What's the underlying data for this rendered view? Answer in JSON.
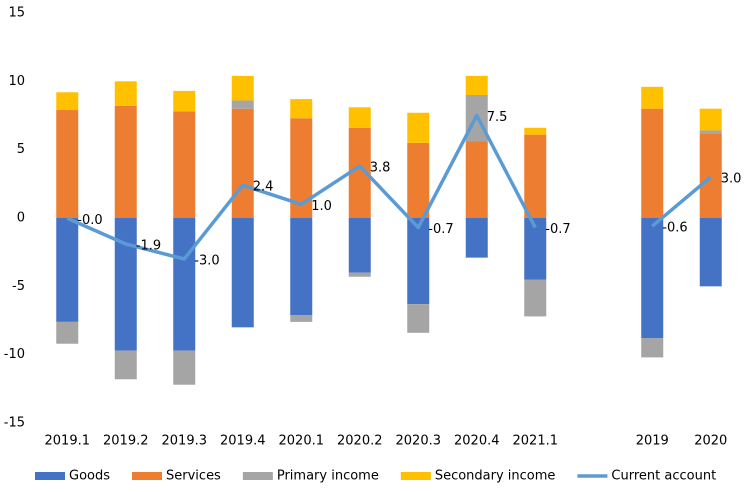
{
  "chart_data": {
    "type": "bar",
    "stacked": true,
    "categories": [
      "2019.1",
      "2019.2",
      "2019.3",
      "2019.4",
      "2020.1",
      "2020.2",
      "2020.3",
      "2020.4",
      "2021.1",
      null,
      "2019",
      "2020"
    ],
    "series": [
      {
        "name": "Goods",
        "color": "#4472c4",
        "values": [
          -7.6,
          -9.7,
          -9.7,
          -8.0,
          -7.1,
          -4.0,
          -6.3,
          -2.9,
          -4.5,
          null,
          -8.8,
          -5.0
        ]
      },
      {
        "name": "Services",
        "color": "#ed7d31",
        "values": [
          7.9,
          8.2,
          7.8,
          8.0,
          7.3,
          6.6,
          5.5,
          5.6,
          6.1,
          null,
          8.0,
          6.2
        ]
      },
      {
        "name": "Primary income",
        "color": "#a5a5a5",
        "values": [
          -1.6,
          -2.1,
          -2.5,
          0.6,
          -0.5,
          -0.3,
          -2.1,
          3.4,
          -2.7,
          null,
          -1.4,
          0.2
        ]
      },
      {
        "name": "Secondary income",
        "color": "#ffc000",
        "values": [
          1.3,
          1.8,
          1.5,
          1.8,
          1.4,
          1.5,
          2.2,
          1.4,
          0.5,
          null,
          1.6,
          1.6
        ]
      },
      {
        "name": "Current account",
        "color": "#5b9bd5",
        "type": "line",
        "values": [
          -0.02,
          -1.9,
          -3.0,
          2.4,
          1.0,
          3.8,
          -0.7,
          7.5,
          -0.7,
          null,
          -0.6,
          3.0
        ],
        "value_labels": [
          "-0.0",
          "-1.9",
          "-3.0",
          "2.4",
          "1.0",
          "3.8",
          "-0.7",
          "7.5",
          "-0.7",
          null,
          "-0.6",
          "3.0"
        ]
      }
    ],
    "ylim": [
      -15,
      15
    ],
    "yticks": [
      -15,
      -10,
      -5,
      0,
      5,
      10,
      15
    ],
    "grid": false,
    "legend": "bottom"
  }
}
